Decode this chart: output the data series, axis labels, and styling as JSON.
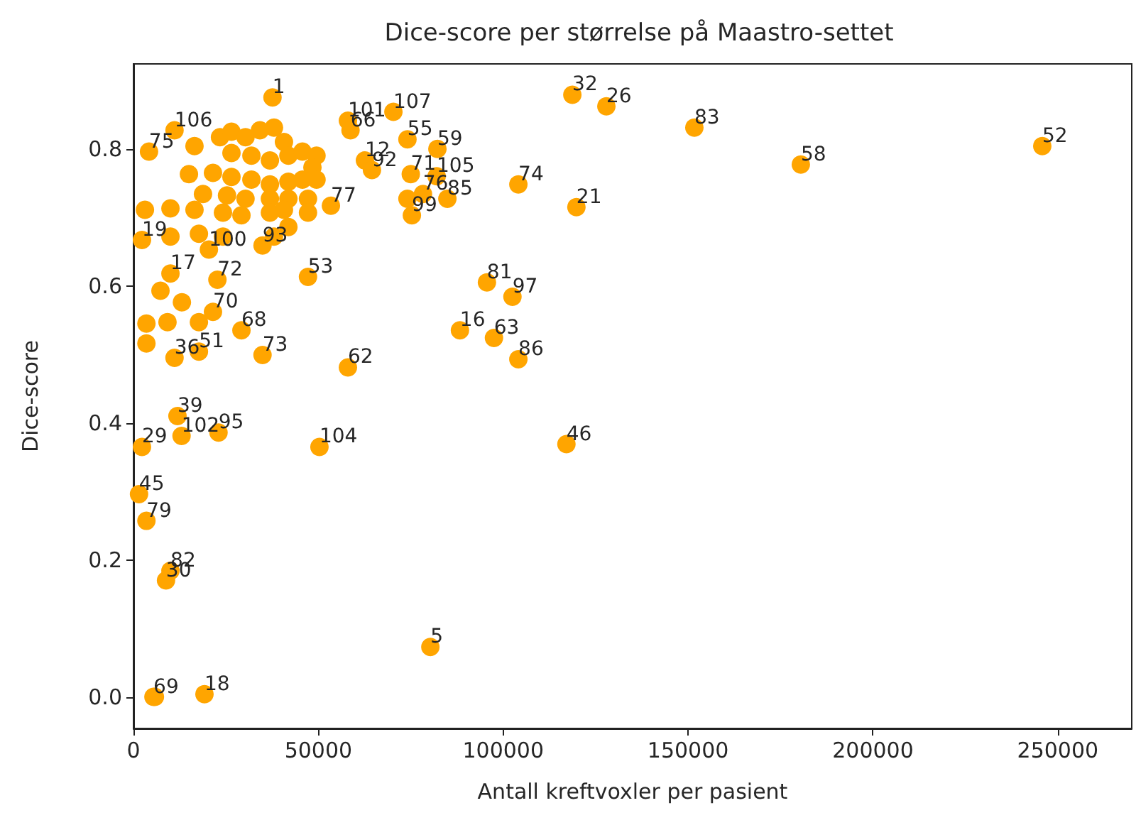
{
  "chart_data": {
    "type": "scatter",
    "title": "Dice-score per størrelse på Maastro-settet",
    "xlabel": "Antall kreftvoxler per pasient",
    "ylabel": "Dice-score",
    "xlim": [
      0,
      270000
    ],
    "ylim": [
      -0.046,
      0.924
    ],
    "xticks": [
      0,
      50000,
      100000,
      150000,
      200000,
      250000
    ],
    "yticks": [
      {
        "value": 0,
        "label": "0.0"
      },
      {
        "value": 0.2,
        "label": "0.2"
      },
      {
        "value": 0.4,
        "label": "0.4"
      },
      {
        "value": 0.6,
        "label": "0.6"
      },
      {
        "value": 0.8,
        "label": "0.8"
      }
    ],
    "grid": false,
    "marker": "circle",
    "series": [
      {
        "color": "#ffa500",
        "x": [
          37600,
          11100,
          4200,
          70300,
          58000,
          58700,
          74100,
          82200,
          62600,
          64500,
          75000,
          82000,
          78300,
          84900,
          74100,
          75300,
          104100,
          119800,
          118700,
          127900,
          151700,
          180500,
          245800,
          53400,
          95600,
          102500,
          88300,
          97500,
          104100,
          58000,
          50300,
          117100,
          80300,
          47200,
          34900,
          29200,
          17700,
          11100,
          21500,
          23000,
          11900,
          13000,
          2300,
          1500,
          3500,
          8800,
          10000,
          5400,
          5800,
          19200,
          2300,
          3100,
          34900,
          10000,
          22700,
          20400,
          16500,
          23400,
          26500,
          30300,
          34200,
          38000,
          40700,
          26500,
          31900,
          36900,
          41900,
          45700,
          49500,
          48400,
          15000,
          21500,
          26500,
          31900,
          36900,
          41900,
          45700,
          49500,
          18800,
          25300,
          30300,
          36900,
          41900,
          47200,
          10000,
          16500,
          24200,
          29200,
          36900,
          40700,
          47200,
          10000,
          17700,
          24200,
          38000,
          41900,
          7300,
          13100,
          3500,
          3500,
          9200,
          17700
        ],
        "values": [
          0.875,
          0.827,
          0.796,
          0.854,
          0.841,
          0.827,
          0.814,
          0.8,
          0.783,
          0.769,
          0.763,
          0.76,
          0.734,
          0.727,
          0.727,
          0.703,
          0.748,
          0.715,
          0.879,
          0.862,
          0.831,
          0.777,
          0.804,
          0.717,
          0.605,
          0.584,
          0.535,
          0.524,
          0.493,
          0.481,
          0.365,
          0.369,
          0.073,
          0.613,
          0.499,
          0.535,
          0.504,
          0.495,
          0.562,
          0.386,
          0.41,
          0.381,
          0.365,
          0.296,
          0.257,
          0.17,
          0.184,
          0.0,
          0.0,
          0.004,
          0.667,
          0.711,
          0.659,
          0.618,
          0.609,
          0.653,
          0.804,
          0.817,
          0.825,
          0.817,
          0.827,
          0.831,
          0.81,
          0.794,
          0.79,
          0.783,
          0.79,
          0.796,
          0.79,
          0.773,
          0.763,
          0.765,
          0.759,
          0.755,
          0.748,
          0.752,
          0.755,
          0.755,
          0.734,
          0.732,
          0.727,
          0.727,
          0.727,
          0.727,
          0.713,
          0.711,
          0.707,
          0.703,
          0.707,
          0.711,
          0.707,
          0.672,
          0.676,
          0.672,
          0.672,
          0.686,
          0.593,
          0.576,
          0.545,
          0.516,
          0.547,
          0.547
        ]
      }
    ],
    "annotations": [
      {
        "text": "1",
        "x": 37600,
        "y": 0.875
      },
      {
        "text": "106",
        "x": 11100,
        "y": 0.827
      },
      {
        "text": "75",
        "x": 4200,
        "y": 0.796
      },
      {
        "text": "107",
        "x": 70300,
        "y": 0.854
      },
      {
        "text": "101",
        "x": 58000,
        "y": 0.841
      },
      {
        "text": "66",
        "x": 58700,
        "y": 0.827
      },
      {
        "text": "55",
        "x": 74100,
        "y": 0.814
      },
      {
        "text": "59",
        "x": 82200,
        "y": 0.8
      },
      {
        "text": "12",
        "x": 62600,
        "y": 0.783
      },
      {
        "text": "92",
        "x": 64500,
        "y": 0.769
      },
      {
        "text": "71",
        "x": 75000,
        "y": 0.763
      },
      {
        "text": "105",
        "x": 82000,
        "y": 0.76
      },
      {
        "text": "76",
        "x": 78300,
        "y": 0.734
      },
      {
        "text": "85",
        "x": 84900,
        "y": 0.727
      },
      {
        "text": "99",
        "x": 75300,
        "y": 0.703
      },
      {
        "text": "74",
        "x": 104100,
        "y": 0.748
      },
      {
        "text": "21",
        "x": 119800,
        "y": 0.715
      },
      {
        "text": "32",
        "x": 118700,
        "y": 0.879
      },
      {
        "text": "26",
        "x": 127900,
        "y": 0.862
      },
      {
        "text": "83",
        "x": 151700,
        "y": 0.831
      },
      {
        "text": "58",
        "x": 180500,
        "y": 0.777
      },
      {
        "text": "52",
        "x": 245800,
        "y": 0.804
      },
      {
        "text": "77",
        "x": 53400,
        "y": 0.717
      },
      {
        "text": "81",
        "x": 95600,
        "y": 0.605
      },
      {
        "text": "97",
        "x": 102500,
        "y": 0.584
      },
      {
        "text": "16",
        "x": 88300,
        "y": 0.535
      },
      {
        "text": "63",
        "x": 97500,
        "y": 0.524
      },
      {
        "text": "86",
        "x": 104100,
        "y": 0.493
      },
      {
        "text": "62",
        "x": 58000,
        "y": 0.481
      },
      {
        "text": "104",
        "x": 50300,
        "y": 0.365
      },
      {
        "text": "46",
        "x": 117100,
        "y": 0.369
      },
      {
        "text": "5",
        "x": 80300,
        "y": 0.073
      },
      {
        "text": "53",
        "x": 47200,
        "y": 0.613
      },
      {
        "text": "73",
        "x": 34900,
        "y": 0.499
      },
      {
        "text": "68",
        "x": 29200,
        "y": 0.535
      },
      {
        "text": "51",
        "x": 17700,
        "y": 0.504
      },
      {
        "text": "36",
        "x": 11100,
        "y": 0.495
      },
      {
        "text": "70",
        "x": 21500,
        "y": 0.562
      },
      {
        "text": "95",
        "x": 23000,
        "y": 0.386
      },
      {
        "text": "39",
        "x": 11900,
        "y": 0.41
      },
      {
        "text": "102",
        "x": 13000,
        "y": 0.381
      },
      {
        "text": "29",
        "x": 2300,
        "y": 0.365
      },
      {
        "text": "45",
        "x": 1500,
        "y": 0.296
      },
      {
        "text": "79",
        "x": 3500,
        "y": 0.257
      },
      {
        "text": "30",
        "x": 8800,
        "y": 0.17
      },
      {
        "text": "82",
        "x": 10000,
        "y": 0.184
      },
      {
        "text": "69",
        "x": 5400,
        "y": 0.0
      },
      {
        "text": "18",
        "x": 19200,
        "y": 0.004
      },
      {
        "text": "19",
        "x": 2300,
        "y": 0.667
      },
      {
        "text": "93",
        "x": 34900,
        "y": 0.659
      },
      {
        "text": "17",
        "x": 10000,
        "y": 0.618
      },
      {
        "text": "72",
        "x": 22700,
        "y": 0.609
      },
      {
        "text": "100",
        "x": 20400,
        "y": 0.653
      }
    ]
  }
}
